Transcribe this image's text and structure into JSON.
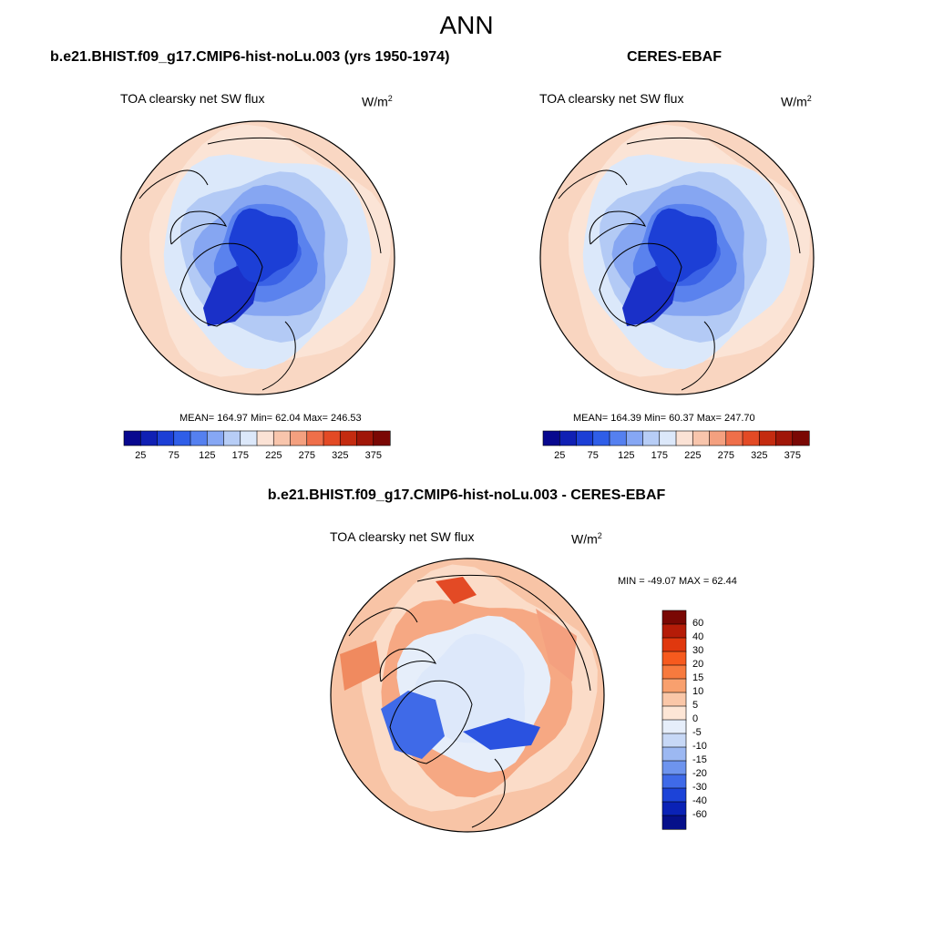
{
  "figure": {
    "title": "ANN",
    "diff_title": "b.e21.BHIST.f09_g17.CMIP6-hist-noLu.003 - CERES-EBAF"
  },
  "panels": [
    {
      "title": "b.e21.BHIST.f09_g17.CMIP6-hist-noLu.003 (yrs 1950-1974)",
      "variable": "TOA clearsky net SW flux",
      "units_base": "W/m",
      "units_exp": "2",
      "stats": "MEAN= 164.97  Min=  62.04  Max= 246.53"
    },
    {
      "title": "CERES-EBAF",
      "variable": "TOA clearsky net SW flux",
      "units_base": "W/m",
      "units_exp": "2",
      "stats": "MEAN= 164.39  Min=  60.37  Max= 247.70"
    },
    {
      "title": "",
      "variable": "TOA clearsky net SW flux",
      "units_base": "W/m",
      "units_exp": "2",
      "stats": "MIN = -49.07 MAX =  62.44"
    }
  ],
  "colorbar_main": {
    "labels": [
      "25",
      "75",
      "125",
      "175",
      "225",
      "275",
      "325",
      "375"
    ],
    "colors": [
      "#08088f",
      "#1020b4",
      "#1c3fd6",
      "#2f5ee8",
      "#5580f0",
      "#86a7f4",
      "#b7cdf6",
      "#dce8fa",
      "#fbe2d5",
      "#f8c5ac",
      "#f4a07f",
      "#ef6f4a",
      "#e34a25",
      "#c42b10",
      "#a01608",
      "#7a0804"
    ]
  },
  "colorbar_diff": {
    "labels": [
      "60",
      "40",
      "30",
      "20",
      "15",
      "10",
      "5",
      "0",
      "-5",
      "-10",
      "-15",
      "-20",
      "-30",
      "-40",
      "-60"
    ],
    "colors": [
      "#7a0804",
      "#b51c08",
      "#e0380e",
      "#f65a1e",
      "#f77a3e",
      "#f8a06e",
      "#fac7a8",
      "#fde6d6",
      "#e6eefa",
      "#c7d8f6",
      "#9cb8f2",
      "#6e94ee",
      "#3f6ae8",
      "#1c43d8",
      "#0a22b6",
      "#06108a"
    ]
  },
  "map_fields": [
    {
      "name": "model",
      "rings": [
        {
          "radius_frac": 1.0,
          "color": "#f9d7c3"
        },
        {
          "radius_frac": 0.88,
          "color": "#fbe4d6"
        },
        {
          "radius_frac": 0.76,
          "color": "#dbe8fa"
        },
        {
          "radius_frac": 0.6,
          "color": "#b3caf5"
        },
        {
          "radius_frac": 0.48,
          "color": "#86a6f2"
        },
        {
          "radius_frac": 0.36,
          "color": "#5a82ee"
        },
        {
          "radius_frac": 0.24,
          "color": "#3a62e6"
        }
      ]
    },
    {
      "name": "obs",
      "rings": [
        {
          "radius_frac": 1.0,
          "color": "#f9d5c0"
        },
        {
          "radius_frac": 0.88,
          "color": "#fbe4d6"
        },
        {
          "radius_frac": 0.76,
          "color": "#dbe8fa"
        },
        {
          "radius_frac": 0.6,
          "color": "#b3caf5"
        },
        {
          "radius_frac": 0.48,
          "color": "#86a6f2"
        },
        {
          "radius_frac": 0.36,
          "color": "#5a82ee"
        },
        {
          "radius_frac": 0.24,
          "color": "#3a62e6"
        }
      ]
    },
    {
      "name": "diff",
      "rings": [
        {
          "radius_frac": 1.0,
          "color": "#f8c4a6"
        },
        {
          "radius_frac": 0.86,
          "color": "#fbdcc8"
        },
        {
          "radius_frac": 0.7,
          "color": "#f6a883"
        },
        {
          "radius_frac": 0.55,
          "color": "#e6eefa"
        },
        {
          "radius_frac": 0.4,
          "color": "#dde8fa"
        }
      ]
    }
  ]
}
